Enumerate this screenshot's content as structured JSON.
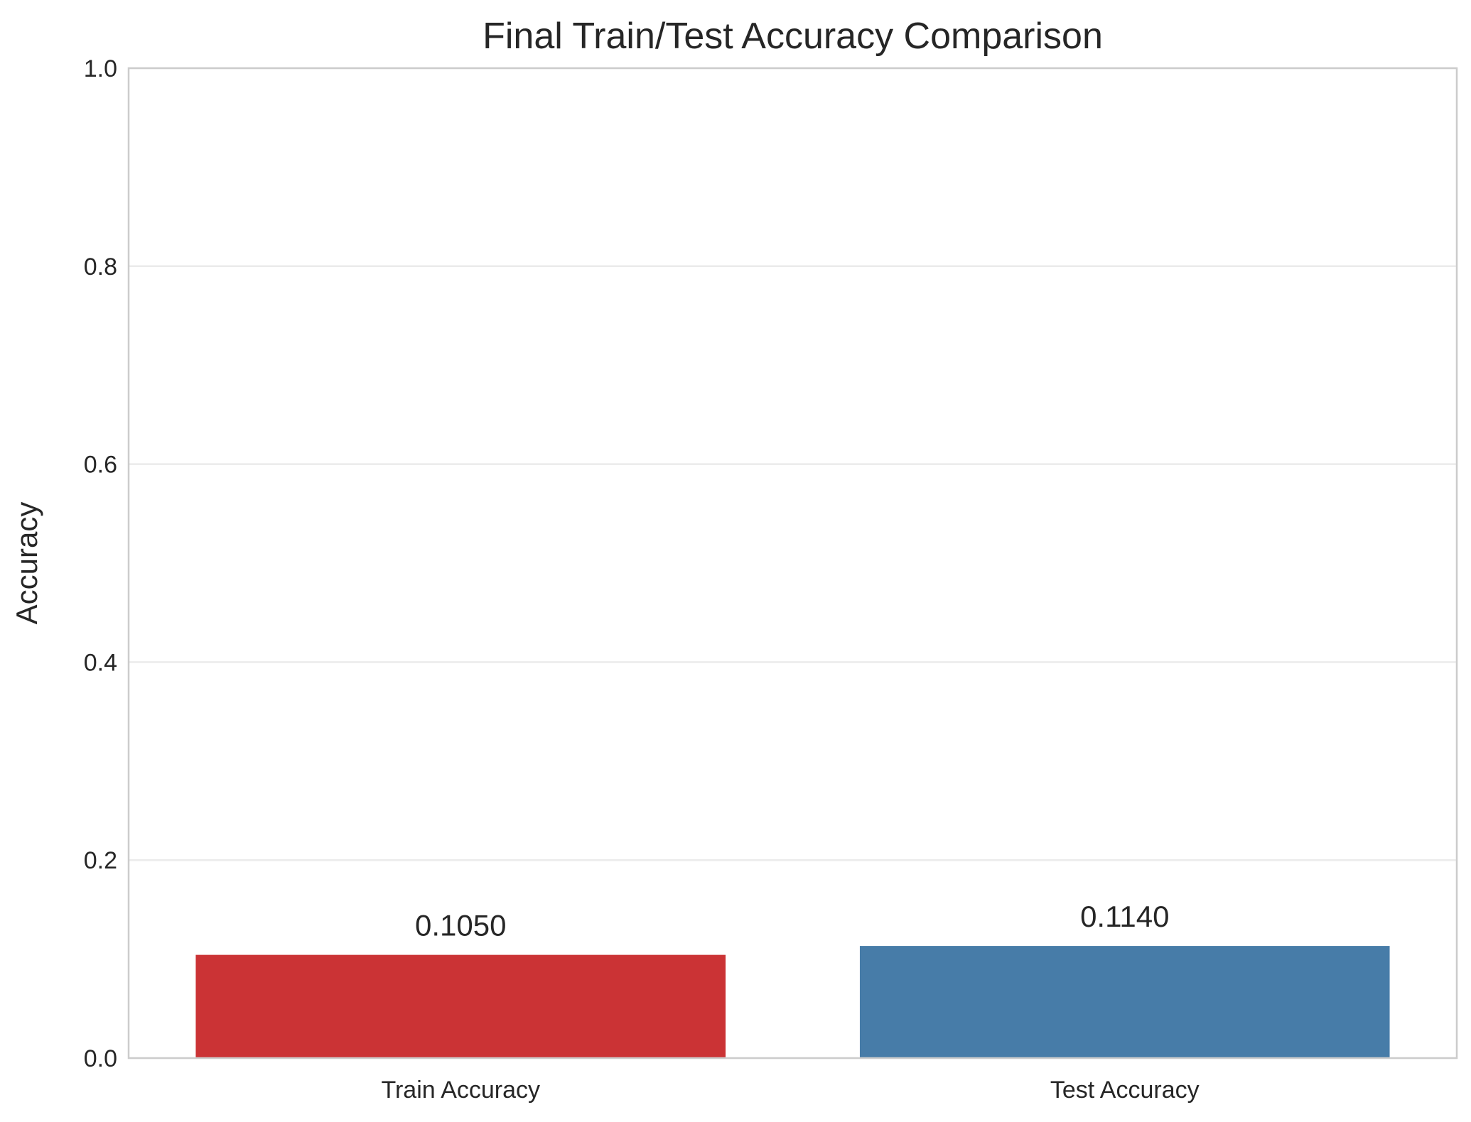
{
  "chart_data": {
    "type": "bar",
    "title": "Final Train/Test Accuracy Comparison",
    "xlabel": "",
    "ylabel": "Accuracy",
    "categories": [
      "Train Accuracy",
      "Test Accuracy"
    ],
    "values": [
      0.105,
      0.114
    ],
    "value_labels": [
      "0.1050",
      "0.1140"
    ],
    "colors": [
      "#cb3335",
      "#477ca8"
    ],
    "ylim": [
      0,
      1.0
    ],
    "yticks": [
      0.0,
      0.2,
      0.4,
      0.6,
      0.8,
      1.0
    ],
    "ytick_labels": [
      "0.0",
      "0.2",
      "0.4",
      "0.6",
      "0.8",
      "1.0"
    ],
    "grid": true,
    "grid_axis": "y"
  }
}
